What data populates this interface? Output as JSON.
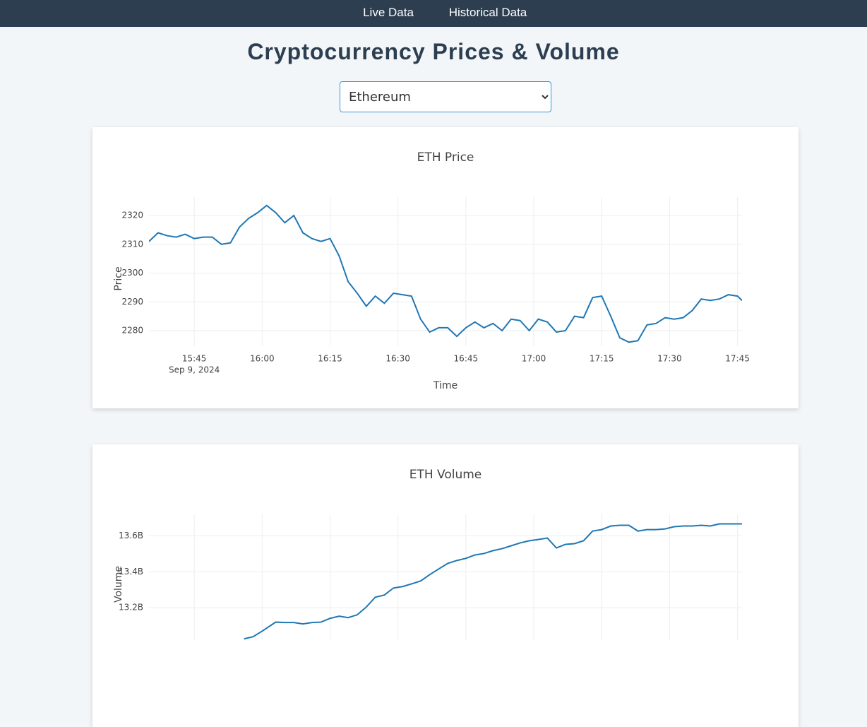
{
  "nav": {
    "links": [
      "Live Data",
      "Historical Data"
    ]
  },
  "header": {
    "title": "Cryptocurrency Prices & Volume"
  },
  "select": {
    "value": "Ethereum"
  },
  "chart_data": [
    {
      "type": "line",
      "title": "ETH Price",
      "x_label": "Time",
      "y_label": "Price",
      "x_date_label": "Sep 9, 2024",
      "color": "#1f77b4",
      "grid": true,
      "xlim": [
        "2024-09-09 15:35",
        "2024-09-09 17:46"
      ],
      "xticks": [
        {
          "value": "2024-09-09 15:45",
          "label": "15:45"
        },
        {
          "value": "2024-09-09 16:00",
          "label": "16:00"
        },
        {
          "value": "2024-09-09 16:15",
          "label": "16:15"
        },
        {
          "value": "2024-09-09 16:30",
          "label": "16:30"
        },
        {
          "value": "2024-09-09 16:45",
          "label": "16:45"
        },
        {
          "value": "2024-09-09 17:00",
          "label": "17:00"
        },
        {
          "value": "2024-09-09 17:15",
          "label": "17:15"
        },
        {
          "value": "2024-09-09 17:30",
          "label": "17:30"
        },
        {
          "value": "2024-09-09 17:45",
          "label": "17:45"
        }
      ],
      "ylim": [
        2274.6,
        2326.4
      ],
      "yticks": [
        2280,
        2290,
        2300,
        2310,
        2320
      ],
      "x": [
        "2024-09-09 15:35",
        "2024-09-09 15:37",
        "2024-09-09 15:39",
        "2024-09-09 15:41",
        "2024-09-09 15:43",
        "2024-09-09 15:45",
        "2024-09-09 15:47",
        "2024-09-09 15:49",
        "2024-09-09 15:51",
        "2024-09-09 15:53",
        "2024-09-09 15:55",
        "2024-09-09 15:57",
        "2024-09-09 15:59",
        "2024-09-09 16:01",
        "2024-09-09 16:03",
        "2024-09-09 16:05",
        "2024-09-09 16:07",
        "2024-09-09 16:09",
        "2024-09-09 16:11",
        "2024-09-09 16:13",
        "2024-09-09 16:15",
        "2024-09-09 16:17",
        "2024-09-09 16:19",
        "2024-09-09 16:21",
        "2024-09-09 16:23",
        "2024-09-09 16:25",
        "2024-09-09 16:27",
        "2024-09-09 16:29",
        "2024-09-09 16:31",
        "2024-09-09 16:33",
        "2024-09-09 16:35",
        "2024-09-09 16:37",
        "2024-09-09 16:39",
        "2024-09-09 16:41",
        "2024-09-09 16:43",
        "2024-09-09 16:45",
        "2024-09-09 16:47",
        "2024-09-09 16:49",
        "2024-09-09 16:51",
        "2024-09-09 16:53",
        "2024-09-09 16:55",
        "2024-09-09 16:57",
        "2024-09-09 16:59",
        "2024-09-09 17:01",
        "2024-09-09 17:03",
        "2024-09-09 17:05",
        "2024-09-09 17:07",
        "2024-09-09 17:09",
        "2024-09-09 17:11",
        "2024-09-09 17:13",
        "2024-09-09 17:15",
        "2024-09-09 17:17",
        "2024-09-09 17:19",
        "2024-09-09 17:21",
        "2024-09-09 17:23",
        "2024-09-09 17:25",
        "2024-09-09 17:27",
        "2024-09-09 17:29",
        "2024-09-09 17:31",
        "2024-09-09 17:33",
        "2024-09-09 17:35",
        "2024-09-09 17:37",
        "2024-09-09 17:39",
        "2024-09-09 17:41",
        "2024-09-09 17:43",
        "2024-09-09 17:45",
        "2024-09-09 17:46"
      ],
      "values": [
        2311,
        2314,
        2313,
        2312.5,
        2313.5,
        2312,
        2312.5,
        2312.5,
        2310,
        2310.5,
        2316,
        2319,
        2321,
        2323.5,
        2321,
        2317.5,
        2320,
        2314,
        2312,
        2311,
        2312,
        2306,
        2297,
        2293,
        2288.5,
        2292,
        2289.5,
        2293,
        2292.5,
        2292,
        2284,
        2279.5,
        2281,
        2281,
        2278,
        2281,
        2283,
        2281,
        2282.5,
        2280,
        2284,
        2283.5,
        2280,
        2284,
        2283,
        2279.5,
        2280,
        2285,
        2284.5,
        2291.5,
        2292,
        2285,
        2277.5,
        2276,
        2276.5,
        2282,
        2282.5,
        2284.5,
        2284,
        2284.5,
        2287,
        2291,
        2290.5,
        2291,
        2292.5,
        2292,
        2290.5
      ]
    },
    {
      "type": "line",
      "title": "ETH Volume",
      "y_label": "Volume",
      "color": "#1f77b4",
      "grid": true,
      "ylim": [
        13020000000,
        13720000000
      ],
      "yticks": [
        {
          "value": 13200000000,
          "label": "13.2B"
        },
        {
          "value": 13400000000,
          "label": "13.4B"
        },
        {
          "value": 13600000000,
          "label": "13.6B"
        }
      ],
      "x": [
        "2024-09-09 15:56",
        "2024-09-09 15:58",
        "2024-09-09 16:00",
        "2024-09-09 16:03",
        "2024-09-09 16:05",
        "2024-09-09 16:07",
        "2024-09-09 16:09",
        "2024-09-09 16:11",
        "2024-09-09 16:13",
        "2024-09-09 16:15",
        "2024-09-09 16:17",
        "2024-09-09 16:19",
        "2024-09-09 16:21",
        "2024-09-09 16:23",
        "2024-09-09 16:25",
        "2024-09-09 16:27",
        "2024-09-09 16:29",
        "2024-09-09 16:31",
        "2024-09-09 16:33",
        "2024-09-09 16:35",
        "2024-09-09 16:37",
        "2024-09-09 16:39",
        "2024-09-09 16:41",
        "2024-09-09 16:43",
        "2024-09-09 16:45",
        "2024-09-09 16:47",
        "2024-09-09 16:49",
        "2024-09-09 16:51",
        "2024-09-09 16:53",
        "2024-09-09 16:55",
        "2024-09-09 16:57",
        "2024-09-09 16:59",
        "2024-09-09 17:01",
        "2024-09-09 17:03",
        "2024-09-09 17:05",
        "2024-09-09 17:07",
        "2024-09-09 17:09",
        "2024-09-09 17:11",
        "2024-09-09 17:13",
        "2024-09-09 17:15",
        "2024-09-09 17:17",
        "2024-09-09 17:19",
        "2024-09-09 17:21",
        "2024-09-09 17:23",
        "2024-09-09 17:25",
        "2024-09-09 17:27",
        "2024-09-09 17:29",
        "2024-09-09 17:31",
        "2024-09-09 17:33",
        "2024-09-09 17:35",
        "2024-09-09 17:37",
        "2024-09-09 17:39",
        "2024-09-09 17:41",
        "2024-09-09 17:43",
        "2024-09-09 17:46"
      ],
      "values": [
        13027000000,
        13039000000,
        13070000000,
        13120000000,
        13118000000,
        13118000000,
        13110000000,
        13118000000,
        13120000000,
        13141000000,
        13153000000,
        13145000000,
        13161000000,
        13204000000,
        13259000000,
        13271000000,
        13310000000,
        13318000000,
        13333000000,
        13349000000,
        13384000000,
        13416000000,
        13447000000,
        13463000000,
        13475000000,
        13494000000,
        13502000000,
        13518000000,
        13529000000,
        13545000000,
        13561000000,
        13573000000,
        13580000000,
        13588000000,
        13533000000,
        13553000000,
        13557000000,
        13573000000,
        13627000000,
        13635000000,
        13655000000,
        13659000000,
        13659000000,
        13627000000,
        13635000000,
        13635000000,
        13639000000,
        13651000000,
        13655000000,
        13655000000,
        13659000000,
        13655000000,
        13667000000,
        13667000000,
        13667000000
      ]
    }
  ]
}
